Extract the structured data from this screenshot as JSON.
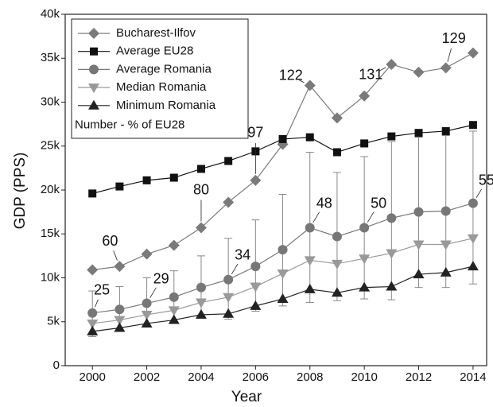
{
  "chart_data": {
    "type": "line",
    "xlabel": "Year",
    "ylabel": "GDP (PPS)",
    "x": [
      2000,
      2001,
      2002,
      2003,
      2004,
      2005,
      2006,
      2007,
      2008,
      2009,
      2010,
      2011,
      2012,
      2013,
      2014
    ],
    "xlim": [
      1999,
      2014.5
    ],
    "xticks": [
      2000,
      2002,
      2004,
      2006,
      2008,
      2010,
      2012,
      2014
    ],
    "ylim": [
      0,
      40000
    ],
    "yticks": [
      0,
      {
        "value": 5000,
        "label": "5k"
      },
      {
        "value": 10000,
        "label": "10k"
      },
      {
        "value": 15000,
        "label": "15k"
      },
      {
        "value": 20000,
        "label": "20k"
      },
      {
        "value": 25000,
        "label": "25k"
      },
      {
        "value": 30000,
        "label": "30k"
      },
      {
        "value": 35000,
        "label": "35k"
      },
      {
        "value": 40000,
        "label": "40k"
      }
    ],
    "legend_position": "upper left",
    "legend_note": "Number - % of EU28",
    "series": [
      {
        "name": "Bucharest-Ilfov",
        "color": "#7a7a7a",
        "marker": "diamond",
        "values": [
          10900,
          11300,
          12700,
          13700,
          15700,
          18600,
          21100,
          25200,
          31900,
          28200,
          30700,
          34300,
          33400,
          33900,
          35600
        ]
      },
      {
        "name": "Average EU28",
        "color": "#111111",
        "marker": "square",
        "values": [
          19600,
          20400,
          21100,
          21400,
          22400,
          23300,
          24400,
          25800,
          26000,
          24300,
          25300,
          26100,
          26500,
          26700,
          27400
        ]
      },
      {
        "name": "Average Romania",
        "color": "#777777",
        "marker": "circle",
        "values": [
          6000,
          6400,
          7100,
          7800,
          8900,
          9800,
          11300,
          13200,
          15700,
          14700,
          15700,
          16800,
          17500,
          17600,
          18500
        ],
        "upper": [
          8500,
          9000,
          10000,
          10800,
          12500,
          14500,
          16600,
          19500,
          24300,
          22000,
          23800,
          25500,
          26000,
          26200,
          26700
        ],
        "lower": [
          3300,
          4000,
          4400,
          4800,
          5400,
          5300,
          6200,
          6800,
          7200,
          7400,
          7600,
          7500,
          8900,
          8900,
          9300
        ]
      },
      {
        "name": "Median Romania",
        "color": "#999999",
        "marker": "triangle-down",
        "values": [
          4800,
          5200,
          5800,
          6300,
          7200,
          7800,
          9000,
          10500,
          12000,
          11600,
          12200,
          12800,
          13800,
          13800,
          14500
        ]
      },
      {
        "name": "Minimum Romania",
        "color": "#222222",
        "marker": "triangle-up",
        "values": [
          3900,
          4300,
          4800,
          5200,
          5800,
          5900,
          6800,
          7600,
          8700,
          8300,
          8900,
          9000,
          10400,
          10600,
          11300
        ]
      }
    ],
    "annotations": [
      {
        "text": "25",
        "x": 2000,
        "y": 6000
      },
      {
        "text": "29",
        "x": 2002,
        "y": 7100
      },
      {
        "text": "34",
        "x": 2005,
        "y": 9800
      },
      {
        "text": "48",
        "x": 2008,
        "y": 15700
      },
      {
        "text": "50",
        "x": 2010,
        "y": 15700
      },
      {
        "text": "55",
        "x": 2014,
        "y": 18500
      },
      {
        "text": "60",
        "x": 2001,
        "y": 11300
      },
      {
        "text": "80",
        "x": 2004,
        "y": 15700
      },
      {
        "text": "97",
        "x": 2006,
        "y": 21100
      },
      {
        "text": "122",
        "x": 2008,
        "y": 31900
      },
      {
        "text": "131",
        "x": 2011,
        "y": 34300
      },
      {
        "text": "129",
        "x": 2013,
        "y": 33900
      }
    ]
  }
}
